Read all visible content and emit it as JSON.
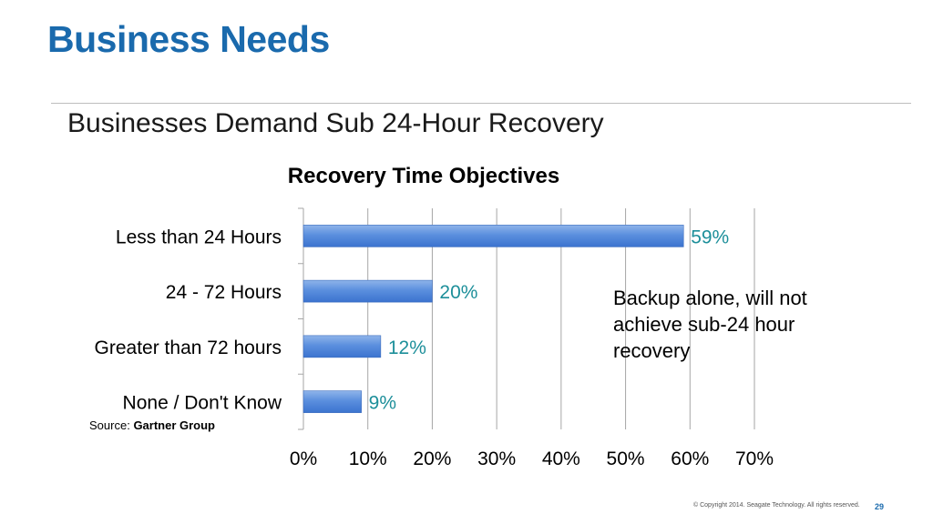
{
  "slide": {
    "title": "Business Needs",
    "subtitle": "Businesses Demand Sub 24-Hour Recovery",
    "callout": "Backup alone, will not achieve sub-24 hour recovery",
    "source_label": "Source:",
    "source_name": "Gartner Group",
    "copyright": "© Copyright 2014. Seagate Technology. All rights reserved.",
    "page_number": "29"
  },
  "colors": {
    "title": "#1a6aad",
    "bar_light": "#8fb4ea",
    "bar_dark": "#3b73cf",
    "data_label": "#1d8f9a",
    "grid": "#a6a6a6"
  },
  "chart_data": {
    "type": "bar",
    "orientation": "horizontal",
    "title": "Recovery Time Objectives",
    "categories": [
      "Less than 24 Hours",
      "24 - 72 Hours",
      "Greater than 72 hours",
      "None / Don't Know"
    ],
    "values": [
      59,
      20,
      12,
      9
    ],
    "data_labels": [
      "59%",
      "20%",
      "12%",
      "9%"
    ],
    "xlim": [
      0,
      70
    ],
    "xticks": [
      0,
      10,
      20,
      30,
      40,
      50,
      60,
      70
    ],
    "xtick_labels": [
      "0%",
      "10%",
      "20%",
      "30%",
      "40%",
      "50%",
      "60%",
      "70%"
    ],
    "grid": true,
    "legend": "none"
  }
}
